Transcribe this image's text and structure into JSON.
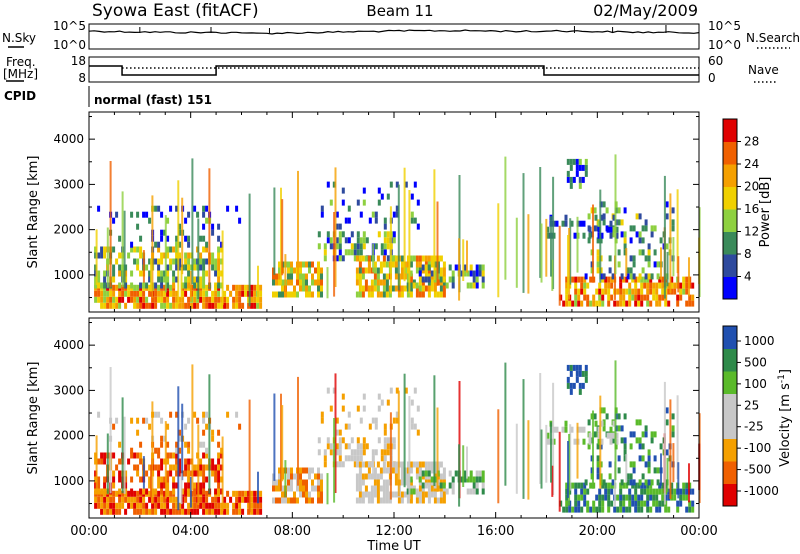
{
  "header": {
    "station": "Syowa East (fitACF)",
    "beam": "Beam 11",
    "date": "02/May/2009"
  },
  "noise_panel": {
    "left_label": "N.Sky",
    "right_label": "N.Search",
    "left_ticks": [
      "10^5",
      "10^0"
    ],
    "right_ticks": [
      "10^5",
      "10^0"
    ]
  },
  "freq_panel": {
    "left_label_1": "Freq.",
    "left_label_2": "[MHz]",
    "right_label": "Nave",
    "left_ticks": [
      "18",
      "8"
    ],
    "right_ticks": [
      "60",
      "0"
    ],
    "cpid_label": "CPID",
    "cpid_text": "normal (fast) 151"
  },
  "colors": {
    "power_scale": [
      "#0000ff",
      "#2e4a9e",
      "#3a8a5a",
      "#8ed040",
      "#f0d000",
      "#f5a000",
      "#f06000",
      "#e00000"
    ],
    "velocity_scale": [
      "#e00000",
      "#f06000",
      "#f5a000",
      "#c8c8c8",
      "#c8c8c8",
      "#5aba2a",
      "#2e8a4a",
      "#2050b0"
    ]
  },
  "chart_data": [
    {
      "type": "heatmap",
      "name": "power",
      "ylabel": "Slant Range [km]",
      "ylim": [
        180,
        4600
      ],
      "yticks": [
        "1000",
        "2000",
        "3000",
        "4000"
      ],
      "colorbar_label": "Power [dB]",
      "colorbar_ticks": [
        "4",
        "8",
        "12",
        "16",
        "20",
        "24",
        "28"
      ],
      "colorbar_range": [
        0,
        32
      ]
    },
    {
      "type": "heatmap",
      "name": "velocity",
      "xlabel": "Time UT",
      "xticks": [
        "00:00",
        "04:00",
        "08:00",
        "12:00",
        "16:00",
        "20:00",
        "00:00"
      ],
      "xlim": [
        0,
        24
      ],
      "ylabel": "Slant Range [km]",
      "ylim": [
        180,
        4600
      ],
      "yticks": [
        "1000",
        "2000",
        "3000",
        "4000"
      ],
      "colorbar_label": "Velocity [m s",
      "colorbar_label_sup": "-1",
      "colorbar_label_end": "]",
      "colorbar_ticks": [
        "1000",
        "500",
        "100",
        "25",
        "-25",
        "-100",
        "-500",
        "-1000"
      ]
    }
  ]
}
